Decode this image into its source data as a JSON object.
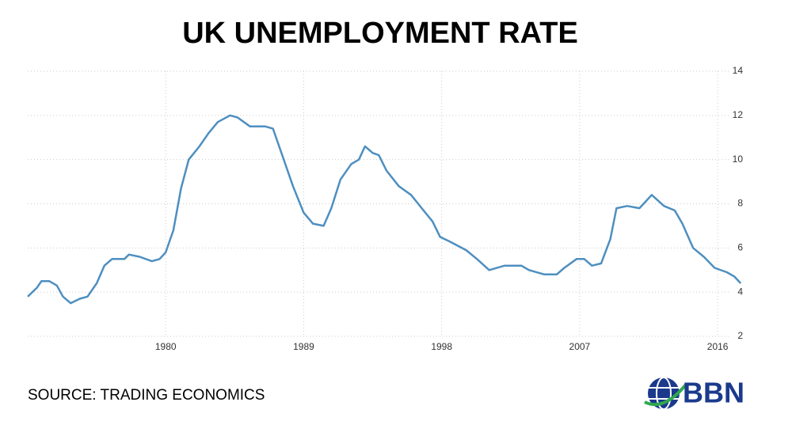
{
  "chart_data": {
    "type": "line",
    "title": "UK UNEMPLOYMENT RATE",
    "source": "SOURCE: TRADING ECONOMICS",
    "logo": "BBN",
    "x": [
      1971.0,
      1971.6,
      1971.9,
      1972.4,
      1972.9,
      1973.3,
      1973.8,
      1974.4,
      1974.9,
      1975.5,
      1976.0,
      1976.5,
      1977.3,
      1977.6,
      1978.3,
      1979.1,
      1979.6,
      1980.0,
      1980.5,
      1981.0,
      1981.5,
      1982.2,
      1982.8,
      1983.4,
      1984.2,
      1984.7,
      1985.5,
      1986.5,
      1987.0,
      1987.5,
      1988.3,
      1989.0,
      1989.6,
      1990.3,
      1990.8,
      1991.4,
      1992.1,
      1992.6,
      1993.0,
      1993.5,
      1993.9,
      1994.4,
      1995.2,
      1996.0,
      1996.7,
      1997.4,
      1997.9,
      1998.5,
      1999.6,
      2000.3,
      2001.1,
      2002.1,
      2003.2,
      2003.7,
      2004.7,
      2005.5,
      2006.0,
      2006.8,
      2007.3,
      2007.8,
      2008.4,
      2009.0,
      2009.4,
      2010.1,
      2010.9,
      2011.7,
      2012.5,
      2013.2,
      2013.7,
      2014.4,
      2015.1,
      2015.8,
      2016.6,
      2017.1,
      2017.5
    ],
    "series": [
      {
        "name": "UK Unemployment Rate",
        "color": "#4e8fc0",
        "values": [
          3.8,
          4.2,
          4.5,
          4.5,
          4.3,
          3.8,
          3.5,
          3.7,
          3.8,
          4.4,
          5.2,
          5.5,
          5.5,
          5.7,
          5.6,
          5.4,
          5.5,
          5.8,
          6.8,
          8.7,
          10.0,
          10.6,
          11.2,
          11.7,
          12.0,
          11.9,
          11.5,
          11.5,
          11.4,
          10.4,
          8.8,
          7.6,
          7.1,
          7.0,
          7.8,
          9.1,
          9.8,
          10.0,
          10.6,
          10.3,
          10.2,
          9.5,
          8.8,
          8.4,
          7.8,
          7.2,
          6.5,
          6.3,
          5.9,
          5.5,
          5.0,
          5.2,
          5.2,
          5.0,
          4.8,
          4.8,
          5.1,
          5.5,
          5.5,
          5.2,
          5.3,
          6.4,
          7.8,
          7.9,
          7.8,
          8.4,
          7.9,
          7.7,
          7.1,
          6.0,
          5.6,
          5.1,
          4.9,
          4.7,
          4.4
        ]
      }
    ],
    "xlim": [
      1971,
      2017.75
    ],
    "xticks": [
      1980,
      1989,
      1998,
      2007,
      2016
    ],
    "ylim": [
      2,
      14
    ],
    "yticks": [
      2,
      4,
      6,
      8,
      10,
      12,
      14
    ],
    "grid": true
  }
}
